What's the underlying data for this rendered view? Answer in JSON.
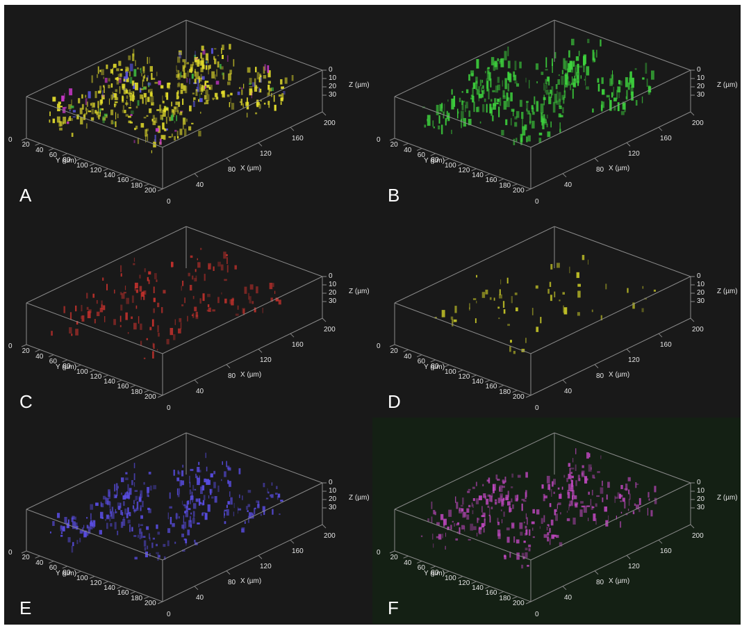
{
  "figure": {
    "background": "#191919",
    "panels": [
      {
        "id": "A",
        "label": "A",
        "channel_color": "#e6e02c",
        "secondary_colors": [
          "#d23ad2",
          "#5a55e0",
          "#3fb83f"
        ],
        "background": "#191919"
      },
      {
        "id": "B",
        "label": "B",
        "channel_color": "#3ed63e",
        "secondary_colors": [],
        "background": "#191919"
      },
      {
        "id": "C",
        "label": "C",
        "channel_color": "#c8322d",
        "secondary_colors": [],
        "background": "#191919"
      },
      {
        "id": "D",
        "label": "D",
        "channel_color": "#c8c828",
        "secondary_colors": [],
        "background": "#191919"
      },
      {
        "id": "E",
        "label": "E",
        "channel_color": "#5a4ee6",
        "secondary_colors": [],
        "background": "#191919"
      },
      {
        "id": "F",
        "label": "F",
        "channel_color": "#c048c0",
        "secondary_colors": [],
        "background": "#142014"
      }
    ],
    "axes": {
      "x": {
        "title": "X (µm)",
        "ticks": [
          "40",
          "80",
          "120",
          "160",
          "200"
        ]
      },
      "y": {
        "title": "Y (µm)",
        "ticks": [
          "0",
          "20",
          "40",
          "60",
          "80",
          "100",
          "120",
          "140",
          "160",
          "180",
          "200"
        ]
      },
      "z": {
        "title": "Z (µm)",
        "ticks": [
          "0",
          "10",
          "20",
          "30"
        ]
      },
      "origin_label": "0"
    }
  }
}
